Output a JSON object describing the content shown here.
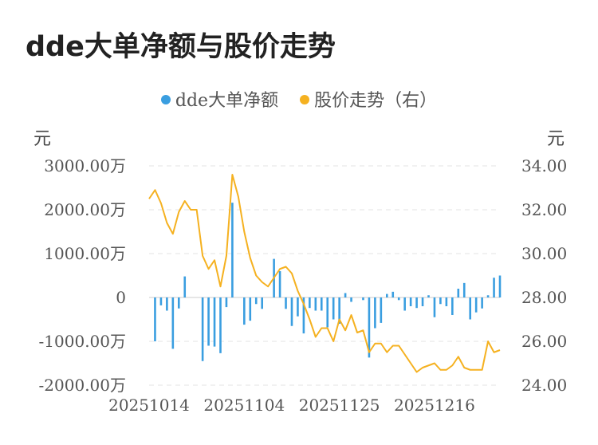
{
  "chart_data": {
    "type": "bar+line",
    "title": "dde大单净额与股价走势",
    "legend_position": "top-center",
    "left_axis_unit": "元",
    "right_axis_unit": "元",
    "y_left": {
      "ticks": [
        3000,
        2000,
        1000,
        0,
        -1000,
        -2000
      ],
      "tick_labels": [
        "3000.00万",
        "2000.00万",
        "1000.00万",
        "0",
        "-1000.00万",
        "-2000.00万"
      ],
      "range": [
        -2000,
        3000
      ]
    },
    "y_right": {
      "ticks": [
        34,
        32,
        30,
        28,
        26,
        24
      ],
      "tick_labels": [
        "34.00",
        "32.00",
        "30.00",
        "28.00",
        "26.00",
        "24.00"
      ],
      "range": [
        24,
        34
      ]
    },
    "x_tick_labels": [
      {
        "index": 0,
        "label": "20251014"
      },
      {
        "index": 16,
        "label": "20251104"
      },
      {
        "index": 32,
        "label": "20251125"
      },
      {
        "index": 48,
        "label": "20251216"
      }
    ],
    "grid": true,
    "series": [
      {
        "name": "dde大单净额",
        "type": "bar",
        "color": "#3a9ee0",
        "values": [
          0,
          -1000,
          -180,
          -300,
          -1170,
          -250,
          480,
          0,
          0,
          -1450,
          -1100,
          -1120,
          -1270,
          -220,
          2160,
          0,
          -620,
          -530,
          -150,
          -260,
          0,
          880,
          600,
          -260,
          -650,
          -430,
          -820,
          -240,
          -300,
          -300,
          -680,
          -500,
          -600,
          100,
          -100,
          0,
          -60,
          -1370,
          -700,
          -580,
          80,
          130,
          -60,
          -300,
          -200,
          -240,
          -200,
          50,
          -450,
          -150,
          -200,
          -400,
          200,
          330,
          -500,
          -340,
          -250,
          50,
          450,
          500
        ]
      },
      {
        "name": "股价走势（右）",
        "type": "line",
        "color": "#f5b120",
        "values": [
          32.5,
          32.9,
          32.3,
          31.4,
          30.9,
          31.9,
          32.4,
          32.0,
          32.0,
          29.9,
          29.3,
          29.7,
          28.5,
          29.9,
          33.6,
          32.6,
          31.0,
          29.8,
          29.0,
          28.7,
          28.5,
          28.9,
          29.3,
          29.4,
          29.1,
          28.3,
          27.7,
          27.0,
          26.2,
          26.6,
          26.6,
          26.0,
          27.0,
          26.5,
          27.2,
          26.4,
          26.5,
          25.5,
          25.9,
          25.9,
          25.5,
          25.8,
          25.8,
          25.4,
          25.0,
          24.6,
          24.8,
          24.9,
          25.0,
          24.7,
          24.7,
          24.9,
          25.3,
          24.8,
          24.7,
          24.7,
          24.7,
          26.0,
          25.5,
          25.6
        ]
      }
    ]
  }
}
